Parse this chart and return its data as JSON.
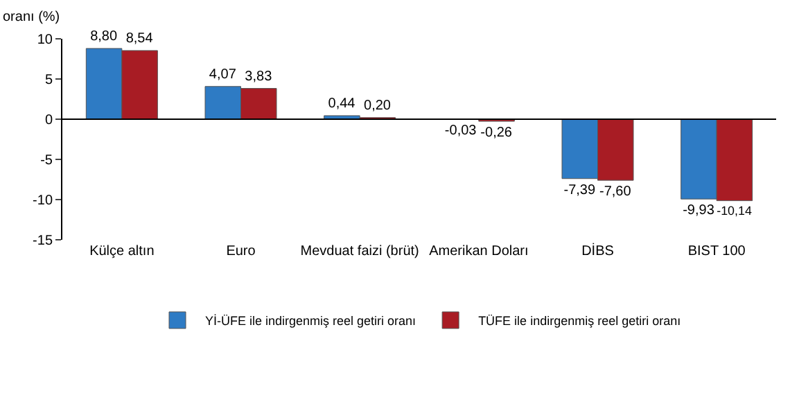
{
  "chart_data": {
    "type": "bar",
    "ylabel": "oranı (%)",
    "categories": [
      "Külçe altın",
      "Euro",
      "Mevduat faizi (brüt)",
      "Amerikan Doları",
      "DİBS",
      "BIST 100"
    ],
    "series": [
      {
        "name": "Yİ-ÜFE ile indirgenmiş reel getiri oranı",
        "color": "#2e7bc4",
        "values": [
          8.8,
          4.07,
          0.44,
          -0.03,
          -7.39,
          -9.93
        ],
        "value_labels": [
          "8,80",
          "4,07",
          "0,44",
          "-0,03",
          "-7,39",
          "-9,93"
        ]
      },
      {
        "name": "TÜFE ile indirgenmiş reel getiri oranı",
        "color": "#a81c24",
        "values": [
          8.54,
          3.83,
          0.2,
          -0.26,
          -7.6,
          -10.14
        ],
        "value_labels": [
          "8,54",
          "3,83",
          "0,20",
          "-0,26",
          "-7,60",
          "-10,14"
        ]
      }
    ],
    "ylim": [
      -15,
      10
    ],
    "yticks": [
      -15,
      -10,
      -5,
      0,
      5,
      10
    ],
    "ref_lines": [
      {
        "axis": "y",
        "value": 0,
        "color": "#000000"
      }
    ],
    "legend": "bottom"
  }
}
